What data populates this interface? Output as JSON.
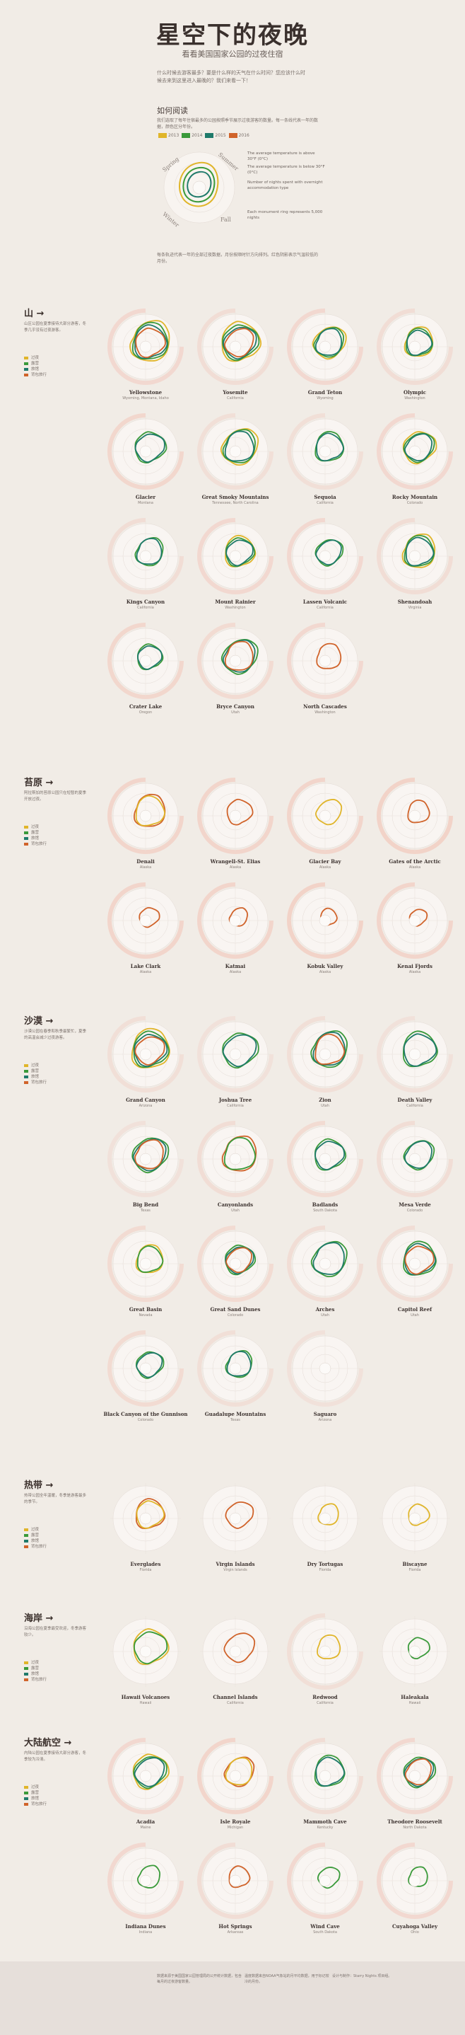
{
  "header": {
    "title": "星空下的夜晚",
    "subtitle": "看看美国国家公园的过夜住宿",
    "intro": "什么时候去游客最多？要是什么样的天气在什么时间？您应该什么时候去来到这里进入最晚的？我们来看一下！"
  },
  "how_to": {
    "title": "如何阅读",
    "text": "我们选取了每年住宿最多的公园按照季节展示过夜游客的数量。每一条线代表一年的数据，颜色区分年份。",
    "legend": [
      {
        "label": "2013",
        "color": "#e0b52a"
      },
      {
        "label": "2014",
        "color": "#3a9a3a"
      },
      {
        "label": "2015",
        "color": "#1f7a6a"
      },
      {
        "label": "2016",
        "color": "#d0632a"
      }
    ],
    "seasons": [
      "Spring",
      "Summer",
      "Fall",
      "Winter"
    ],
    "annotations": [
      "The average temperature is above 30°F (0°C)",
      "The average temperature is below 30°F (0°C)",
      "Each monument ring represents 5,000 nights",
      "Number of nights spent with overnight accommodation type"
    ],
    "footer": "每条轨迹代表一年的全部过夜数据，月份按顺时针方向排列。红色阴影表示气温较低的月份。"
  },
  "chart_data": {
    "type": "polar-line",
    "series_colors": {
      "2013": "#e0b52a",
      "2014": "#3a9a3a",
      "2015": "#1f7a6a",
      "2016": "#d0632a"
    },
    "sections": [
      {
        "name": "山 →",
        "desc": "山区公园在夏季接待大部分游客，冬季几乎没有过夜游客。",
        "legend": [
          "过夜",
          "露营",
          "旅馆",
          "背包旅行"
        ],
        "parks": [
          {
            "name": "Yellowstone",
            "state": "Wyoming, Montana, Idaho",
            "series": [
              "2013",
              "2014",
              "2015",
              "2016"
            ],
            "scale": 1.0,
            "cold": 0.5
          },
          {
            "name": "Yosemite",
            "state": "California",
            "series": [
              "2013",
              "2014",
              "2015",
              "2016"
            ],
            "scale": 0.95,
            "cold": 0.3
          },
          {
            "name": "Grand Teton",
            "state": "Wyoming",
            "series": [
              "2013",
              "2014",
              "2015"
            ],
            "scale": 0.7,
            "cold": 0.5
          },
          {
            "name": "Olympic",
            "state": "Washington",
            "series": [
              "2013",
              "2014",
              "2015"
            ],
            "scale": 0.6,
            "cold": 0.3
          },
          {
            "name": "Glacier",
            "state": "Montana",
            "series": [
              "2014",
              "2015"
            ],
            "scale": 0.65,
            "cold": 0.6
          },
          {
            "name": "Great Smoky Mountains",
            "state": "Tennessee, North Carolina",
            "series": [
              "2013",
              "2014",
              "2015"
            ],
            "scale": 0.85,
            "cold": 0.2
          },
          {
            "name": "Sequoia",
            "state": "California",
            "series": [
              "2014",
              "2015"
            ],
            "scale": 0.6,
            "cold": 0.2
          },
          {
            "name": "Rocky Mountain",
            "state": "Colorado",
            "series": [
              "2013",
              "2014",
              "2015"
            ],
            "scale": 0.7,
            "cold": 0.5
          },
          {
            "name": "Kings Canyon",
            "state": "California",
            "series": [
              "2014",
              "2015"
            ],
            "scale": 0.55,
            "cold": 0.3
          },
          {
            "name": "Mount Rainier",
            "state": "Washington",
            "series": [
              "2013",
              "2014",
              "2015"
            ],
            "scale": 0.65,
            "cold": 0.5
          },
          {
            "name": "Lassen Volcanic",
            "state": "California",
            "series": [
              "2014",
              "2015"
            ],
            "scale": 0.5,
            "cold": 0.5
          },
          {
            "name": "Shenandoah",
            "state": "Virginia",
            "series": [
              "2013",
              "2014",
              "2015"
            ],
            "scale": 0.75,
            "cold": 0.3
          },
          {
            "name": "Crater Lake",
            "state": "Oregon",
            "series": [
              "2014",
              "2015"
            ],
            "scale": 0.45,
            "cold": 0.6
          },
          {
            "name": "Bryce Canyon",
            "state": "Utah",
            "series": [
              "2014",
              "2015",
              "2016"
            ],
            "scale": 0.8,
            "cold": 0.4
          },
          {
            "name": "North Cascades",
            "state": "Washington",
            "series": [
              "2016"
            ],
            "scale": 0.45,
            "cold": 0.5
          }
        ]
      },
      {
        "name": "苔原 →",
        "desc": "阿拉斯加的苔原公园只在短暂的夏季开放过夜。",
        "legend": [
          "过夜",
          "露营",
          "旅馆",
          "背包旅行"
        ],
        "parks": [
          {
            "name": "Denali",
            "state": "Alaska",
            "series": [
              "2016",
              "2013"
            ],
            "scale": 0.7,
            "cold": 0.7
          },
          {
            "name": "Wrangell-St. Elias",
            "state": "Alaska",
            "series": [
              "2016"
            ],
            "scale": 0.45,
            "cold": 0.7
          },
          {
            "name": "Glacier Bay",
            "state": "Alaska",
            "series": [
              "2013"
            ],
            "scale": 0.45,
            "cold": 0.7
          },
          {
            "name": "Gates of the Arctic",
            "state": "Alaska",
            "series": [
              "2016"
            ],
            "scale": 0.35,
            "cold": 0.8
          },
          {
            "name": "Lake Clark",
            "state": "Alaska",
            "series": [
              "2016"
            ],
            "scale": 0.25,
            "cold": 0.7
          },
          {
            "name": "Katmai",
            "state": "Alaska",
            "series": [
              "2016"
            ],
            "scale": 0.2,
            "cold": 0.7
          },
          {
            "name": "Kobuk Valley",
            "state": "Alaska",
            "series": [
              "2016"
            ],
            "scale": 0.15,
            "cold": 0.8
          },
          {
            "name": "Kenai Fjords",
            "state": "Alaska",
            "series": [
              "2016"
            ],
            "scale": 0.15,
            "cold": 0.7
          }
        ]
      },
      {
        "name": "沙漠 →",
        "desc": "沙漠公园在春季和秋季最繁忙，夏季的高温会减少过夜游客。",
        "legend": [
          "过夜",
          "露营",
          "旅馆",
          "背包旅行"
        ],
        "parks": [
          {
            "name": "Grand Canyon",
            "state": "Arizona",
            "series": [
              "2013",
              "2014",
              "2015",
              "2016"
            ],
            "scale": 0.95,
            "cold": 0.2
          },
          {
            "name": "Joshua Tree",
            "state": "California",
            "series": [
              "2014",
              "2015"
            ],
            "scale": 0.8,
            "cold": 0.1
          },
          {
            "name": "Zion",
            "state": "Utah",
            "series": [
              "2014",
              "2015",
              "2016"
            ],
            "scale": 0.85,
            "cold": 0.2
          },
          {
            "name": "Death Valley",
            "state": "California",
            "series": [
              "2014",
              "2015"
            ],
            "scale": 0.8,
            "cold": 0.1
          },
          {
            "name": "Big Bend",
            "state": "Texas",
            "series": [
              "2014",
              "2015",
              "2016"
            ],
            "scale": 0.8,
            "cold": 0.1
          },
          {
            "name": "Canyonlands",
            "state": "Utah",
            "series": [
              "2016",
              "2014"
            ],
            "scale": 0.8,
            "cold": 0.3
          },
          {
            "name": "Badlands",
            "state": "South Dakota",
            "series": [
              "2014",
              "2015"
            ],
            "scale": 0.65,
            "cold": 0.4
          },
          {
            "name": "Mesa Verde",
            "state": "Colorado",
            "series": [
              "2014",
              "2015"
            ],
            "scale": 0.6,
            "cold": 0.3
          },
          {
            "name": "Great Basin",
            "state": "Nevada",
            "series": [
              "2013",
              "2014"
            ],
            "scale": 0.55,
            "cold": 0.4
          },
          {
            "name": "Great Sand Dunes",
            "state": "Colorado",
            "series": [
              "2014",
              "2015",
              "2016"
            ],
            "scale": 0.6,
            "cold": 0.4
          },
          {
            "name": "Arches",
            "state": "Utah",
            "series": [
              "2014",
              "2015"
            ],
            "scale": 0.8,
            "cold": 0.3
          },
          {
            "name": "Capitol Reef",
            "state": "Utah",
            "series": [
              "2014",
              "2015",
              "2016"
            ],
            "scale": 0.75,
            "cold": 0.3
          },
          {
            "name": "Black Canyon of the Gunnison",
            "state": "Colorado",
            "series": [
              "2014",
              "2015"
            ],
            "scale": 0.5,
            "cold": 0.4
          },
          {
            "name": "Guadalupe Mountains",
            "state": "Texas",
            "series": [
              "2014",
              "2015"
            ],
            "scale": 0.5,
            "cold": 0.2
          },
          {
            "name": "Saguaro",
            "state": "Arizona",
            "series": [],
            "scale": 0.1,
            "cold": 0.1
          }
        ]
      },
      {
        "name": "热带 →",
        "desc": "热带公园全年温暖，冬季是游客最多的季节。",
        "legend": [
          "过夜",
          "露营",
          "旅馆",
          "背包旅行"
        ],
        "parks": [
          {
            "name": "Everglades",
            "state": "Florida",
            "series": [
              "2016",
              "2013"
            ],
            "scale": 0.6,
            "cold": 0.0
          },
          {
            "name": "Virgin Islands",
            "state": "Virgin Islands",
            "series": [
              "2016"
            ],
            "scale": 0.5,
            "cold": 0.0
          },
          {
            "name": "Dry Tortugas",
            "state": "Florida",
            "series": [
              "2013"
            ],
            "scale": 0.3,
            "cold": 0.0
          },
          {
            "name": "Biscayne",
            "state": "Florida",
            "series": [
              "2013"
            ],
            "scale": 0.3,
            "cold": 0.0
          }
        ]
      },
      {
        "name": "海岸 →",
        "desc": "沿海公园在夏季最受欢迎，冬季游客较少。",
        "legend": [
          "过夜",
          "露营",
          "旅馆",
          "背包旅行"
        ],
        "parks": [
          {
            "name": "Hawaii Volcanoes",
            "state": "Hawaii",
            "series": [
              "2013",
              "2014"
            ],
            "scale": 0.8,
            "cold": 0.0
          },
          {
            "name": "Channel Islands",
            "state": "California",
            "series": [
              "2016"
            ],
            "scale": 0.6,
            "cold": 0.0
          },
          {
            "name": "Redwood",
            "state": "California",
            "series": [
              "2013"
            ],
            "scale": 0.4,
            "cold": 0.2
          },
          {
            "name": "Haleakala",
            "state": "Hawaii",
            "series": [
              "2014"
            ],
            "scale": 0.3,
            "cold": 0.0
          }
        ]
      },
      {
        "name": "大陆航空 →",
        "desc": "内陆公园在夏季接待大部分游客，冬季较为冷清。",
        "legend": [
          "过夜",
          "露营",
          "旅馆",
          "背包旅行"
        ],
        "parks": [
          {
            "name": "Acadia",
            "state": "Maine",
            "series": [
              "2013",
              "2014",
              "2015"
            ],
            "scale": 0.8,
            "cold": 0.5
          },
          {
            "name": "Isle Royale",
            "state": "Michigan",
            "series": [
              "2016",
              "2013"
            ],
            "scale": 0.6,
            "cold": 0.7
          },
          {
            "name": "Mammoth Cave",
            "state": "Kentucky",
            "series": [
              "2014",
              "2015"
            ],
            "scale": 0.65,
            "cold": 0.3
          },
          {
            "name": "Theodore Roosevelt",
            "state": "North Dakota",
            "series": [
              "2014",
              "2015",
              "2016"
            ],
            "scale": 0.65,
            "cold": 0.5
          },
          {
            "name": "Indiana Dunes",
            "state": "Indiana",
            "series": [
              "2014"
            ],
            "scale": 0.35,
            "cold": 0.5
          },
          {
            "name": "Hot Springs",
            "state": "Arkansas",
            "series": [
              "2016"
            ],
            "scale": 0.3,
            "cold": 0.3
          },
          {
            "name": "Wind Cave",
            "state": "South Dakota",
            "series": [
              "2014"
            ],
            "scale": 0.3,
            "cold": 0.5
          },
          {
            "name": "Cuyahoga Valley",
            "state": "Ohio",
            "series": [
              "2014"
            ],
            "scale": 0.25,
            "cold": 0.5
          }
        ]
      }
    ]
  },
  "footer": {
    "col1": "数据来源于美国国家公园管理局的公开统计数据，包含每月的过夜游客数量。",
    "col2": "温度数据来自NOAA气象站的月平均数据，用于标记较冷的月份。",
    "col3": "设计与制作：Starry Nights 项目组。"
  }
}
